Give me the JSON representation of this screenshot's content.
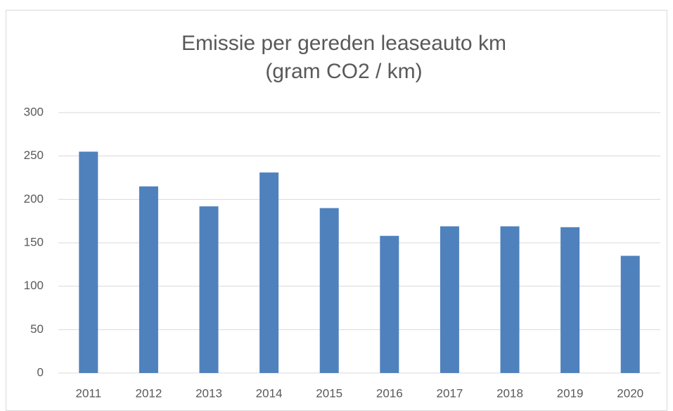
{
  "chart_data": {
    "type": "bar",
    "title": "Emissie per gereden leaseauto km",
    "subtitle": "(gram CO2 / km)",
    "categories": [
      "2011",
      "2012",
      "2013",
      "2014",
      "2015",
      "2016",
      "2017",
      "2018",
      "2019",
      "2020"
    ],
    "values": [
      255,
      215,
      192,
      231,
      190,
      158,
      169,
      169,
      168,
      135
    ],
    "color": "#4f81bd",
    "ylim": [
      0,
      300
    ],
    "yticks": [
      0,
      50,
      100,
      150,
      200,
      250,
      300
    ],
    "grid": true
  }
}
